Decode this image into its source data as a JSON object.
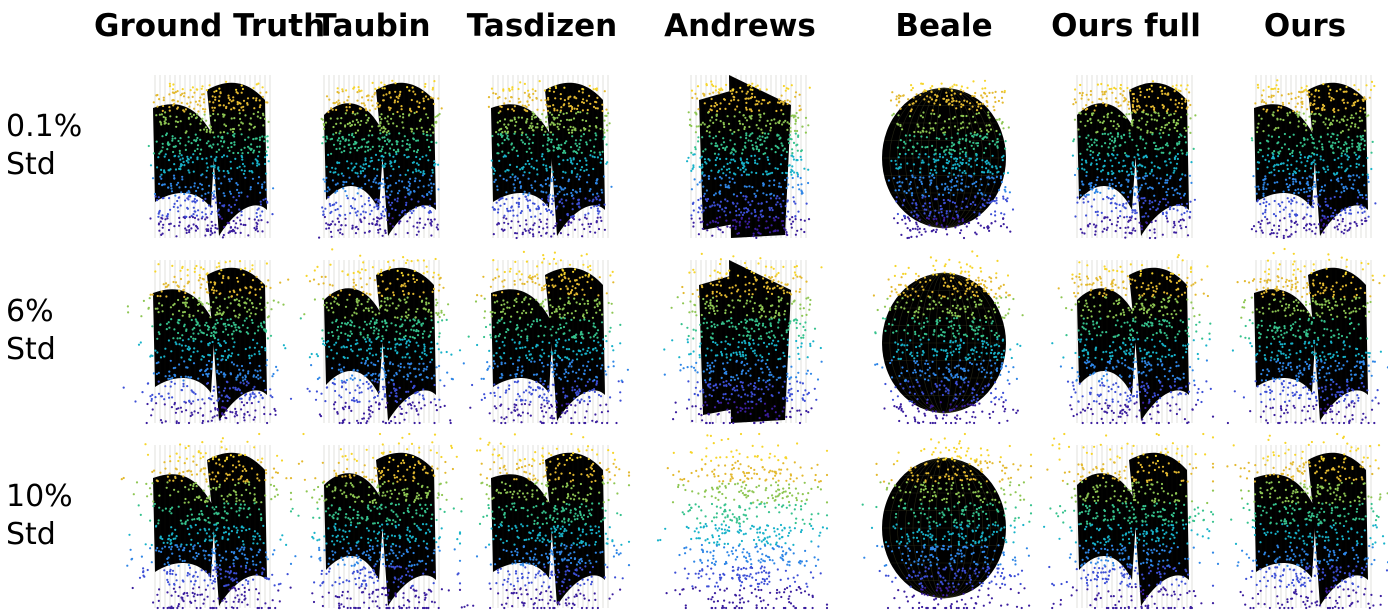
{
  "columns": [
    "Ground Truth",
    "Taubin",
    "Tasdizen",
    "Andrews",
    "Beale",
    "Ours full",
    "Ours"
  ],
  "rows": [
    {
      "line1": "0.1%",
      "line2": "Std",
      "noise": 0.1
    },
    {
      "line1": "6%",
      "line2": "Std",
      "noise": 6
    },
    {
      "line1": "10%",
      "line2": "Std",
      "noise": 10
    }
  ],
  "surface_types": {
    "Ground Truth": "curved-planes",
    "Taubin": "curved-planes",
    "Tasdizen": "curved-planes",
    "Andrews": "intersecting-planes",
    "Beale": "sphere",
    "Ours full": "curved-planes",
    "Ours": "curved-planes"
  },
  "colormap": [
    "#3b1e9e",
    "#3d4fd6",
    "#2f86e6",
    "#18b2c9",
    "#36c28d",
    "#8ec653",
    "#e3b930",
    "#f6d52b"
  ],
  "surface_color": "#000000"
}
